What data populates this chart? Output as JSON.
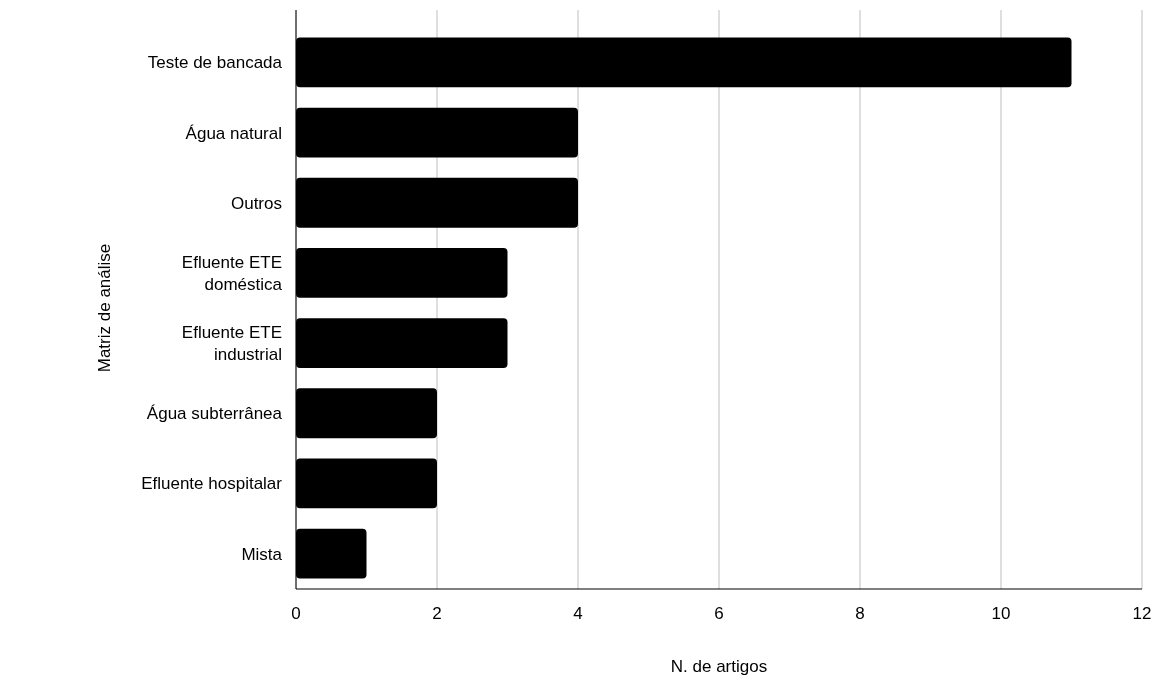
{
  "chart_data": {
    "type": "bar",
    "orientation": "horizontal",
    "xlabel": "N. de artigos",
    "ylabel": "Matriz de análise",
    "categories": [
      "Teste de bancada",
      "Água natural",
      "Outros",
      "Efluente ETE doméstica",
      "Efluente ETE industrial",
      "Água subterrânea",
      "Efluente hospitalar",
      "Mista"
    ],
    "values": [
      11,
      4,
      4,
      3,
      3,
      2,
      2,
      1
    ],
    "color": "#000000",
    "xlim": [
      0,
      12
    ],
    "xticks": [
      0,
      2,
      4,
      6,
      8,
      10,
      12
    ],
    "grid": "x"
  }
}
